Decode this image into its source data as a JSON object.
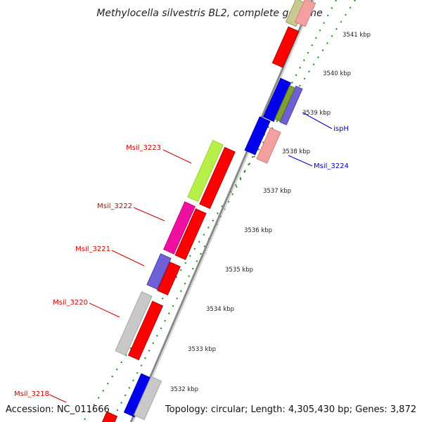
{
  "title": "Methylocella silvestris BL2, complete genome",
  "footer": {
    "accession": "Accession: NC_011666",
    "topology": "Topology: circular; Length: 4,305,430 bp; Genes: 3,872"
  },
  "ticks": [
    "3541 kbp",
    "3540 kbp",
    "3539 kbp",
    "3538 kbp",
    "3537 kbp",
    "3536 kbp",
    "3535 kbp",
    "3534 kbp",
    "3533 kbp",
    "3532 kbp"
  ],
  "labels": {
    "left": [
      "Msil_3223",
      "Msil_3222",
      "Msil_3221",
      "Msil_3220",
      "Msil_3218"
    ],
    "right": [
      "ispH",
      "Msil_3224"
    ]
  },
  "colors": {
    "red": "#ff0000",
    "blue": "#0000ee",
    "gray": "#c8c8c8",
    "backbone": "#888888",
    "tick_green": "#1a8a1a",
    "label_red": "#cc0000",
    "label_blue": "#0000cc"
  }
}
